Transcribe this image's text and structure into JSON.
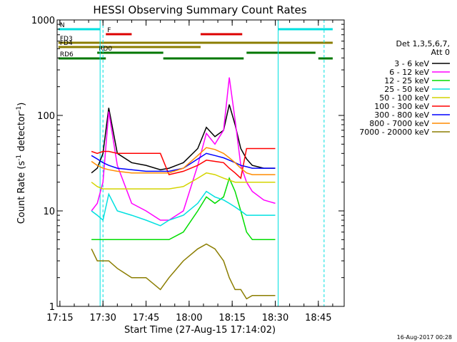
{
  "chart_data": {
    "type": "line",
    "title": "HESSI Observing Summary Count Rates",
    "xlabel": "Start Time (27-Aug-15 17:14:02)",
    "ylabel_main": "Count Rate (s",
    "ylabel_sup1": "-1",
    "ylabel_mid": " detector",
    "ylabel_sup2": "-1",
    "ylabel_end": ")",
    "yscale": "log",
    "xlim": [
      "17:14:02",
      "18:54:00"
    ],
    "ylim": [
      1,
      1000
    ],
    "x_ticks": [
      "17:15",
      "17:30",
      "17:45",
      "18:00",
      "18:15",
      "18:30",
      "18:45"
    ],
    "y_ticks": [
      "1",
      "10",
      "100",
      "1000"
    ],
    "footer_date": "16-Aug-2017 00:28",
    "legend": {
      "header": [
        "Det 1,3,5,6,7,",
        "Att 0"
      ],
      "entries": [
        {
          "label": "3 - 6 keV",
          "color": "#000000"
        },
        {
          "label": "6 - 12 keV",
          "color": "#ff00ff"
        },
        {
          "label": "12 - 25 keV",
          "color": "#00dd00"
        },
        {
          "label": "25 - 50 keV",
          "color": "#00e0e0"
        },
        {
          "label": "50 - 100 keV",
          "color": "#d4d400"
        },
        {
          "label": "100 - 300 keV",
          "color": "#ff0000"
        },
        {
          "label": "300 - 800 keV",
          "color": "#0000ff"
        },
        {
          "label": "800 - 7000 keV",
          "color": "#ff8c00"
        },
        {
          "label": "7000 - 20000 keV",
          "color": "#8b7d00"
        }
      ]
    },
    "flag_bars": [
      {
        "label": "N",
        "color": "#00e0e0",
        "segments": [
          [
            "17:14:30",
            "17:29:00"
          ],
          [
            "18:31:00",
            "18:50:00"
          ]
        ]
      },
      {
        "label": "F",
        "color": "#dd0000",
        "segments": [
          [
            "17:31:00",
            "17:40:00"
          ],
          [
            "18:04:00",
            "18:18:30"
          ]
        ]
      },
      {
        "label": "FD3",
        "color": "#8b7d00",
        "segments": [
          [
            "17:14:30",
            "18:50:00"
          ]
        ]
      },
      {
        "label": "FD4",
        "color": "#8b7d00",
        "segments": [
          [
            "17:14:30",
            "18:04:00"
          ]
        ]
      },
      {
        "label": "RD0",
        "color": "#007700",
        "segments": [
          [
            "17:28:00",
            "17:51:00"
          ],
          [
            "18:20:00",
            "18:44:00"
          ]
        ]
      },
      {
        "label": "RD6",
        "color": "#007700",
        "segments": [
          [
            "17:14:30",
            "17:31:00"
          ],
          [
            "17:51:00",
            "18:19:00"
          ],
          [
            "18:45:00",
            "18:50:00"
          ]
        ]
      }
    ],
    "vlines": [
      {
        "time": "17:29:00",
        "color": "#00e0e0",
        "style": "solid"
      },
      {
        "time": "17:30:00",
        "color": "#00e0e0",
        "style": "dashed"
      },
      {
        "time": "18:31:00",
        "color": "#00e0e0",
        "style": "solid"
      },
      {
        "time": "18:47:00",
        "color": "#00e0e0",
        "style": "dashed"
      }
    ],
    "time_points": [
      "17:26",
      "17:28",
      "17:30",
      "17:32",
      "17:35",
      "17:40",
      "17:45",
      "17:50",
      "17:53",
      "17:58",
      "18:03",
      "18:06",
      "18:09",
      "18:12",
      "18:14",
      "18:16",
      "18:18",
      "18:20",
      "18:22",
      "18:26",
      "18:30"
    ],
    "series": [
      {
        "name": "3 - 6 keV",
        "color": "#000000",
        "values": [
          25,
          28,
          40,
          120,
          40,
          32,
          30,
          27,
          28,
          32,
          45,
          75,
          60,
          70,
          130,
          80,
          45,
          35,
          30,
          28,
          28
        ]
      },
      {
        "name": "6 - 12 keV",
        "color": "#ff00ff",
        "values": [
          10,
          12,
          20,
          110,
          30,
          12,
          10,
          8,
          8,
          10,
          30,
          65,
          50,
          70,
          250,
          90,
          30,
          20,
          16,
          13,
          12
        ]
      },
      {
        "name": "12 - 25 keV",
        "color": "#00dd00",
        "values": [
          5,
          5,
          5,
          5,
          5,
          5,
          5,
          5,
          5,
          6,
          10,
          14,
          12,
          14,
          22,
          16,
          10,
          6,
          5,
          5,
          5
        ]
      },
      {
        "name": "25 - 50 keV",
        "color": "#00e0e0",
        "values": [
          10,
          9,
          8,
          15,
          10,
          9,
          8,
          7,
          8,
          9,
          12,
          16,
          14,
          13,
          12,
          11,
          10,
          9,
          9,
          9,
          9
        ]
      },
      {
        "name": "50 - 100 keV",
        "color": "#d4d400",
        "values": [
          20,
          18,
          17,
          17,
          17,
          17,
          17,
          17,
          17,
          18,
          22,
          25,
          24,
          22,
          21,
          20,
          20,
          20,
          20,
          20,
          20
        ]
      },
      {
        "name": "100 - 300 keV",
        "color": "#ff0000",
        "values": [
          42,
          40,
          42,
          42,
          40,
          40,
          40,
          40,
          24,
          26,
          30,
          34,
          33,
          32,
          28,
          25,
          22,
          45,
          45,
          45,
          45
        ]
      },
      {
        "name": "300 - 800 keV",
        "color": "#0000ff",
        "values": [
          38,
          35,
          32,
          30,
          28,
          27,
          26,
          26,
          26,
          28,
          35,
          40,
          38,
          36,
          34,
          32,
          30,
          29,
          28,
          28,
          28
        ]
      },
      {
        "name": "800 - 7000 keV",
        "color": "#ff8c00",
        "values": [
          33,
          30,
          28,
          27,
          26,
          25,
          25,
          25,
          25,
          28,
          38,
          46,
          44,
          40,
          36,
          32,
          28,
          25,
          24,
          24,
          24
        ]
      },
      {
        "name": "7000 - 20000 keV",
        "color": "#8b7d00",
        "values": [
          4,
          3,
          3,
          3,
          2.5,
          2,
          2,
          1.5,
          2,
          3,
          4,
          4.5,
          4,
          3,
          2,
          1.5,
          1.5,
          1.2,
          1.3,
          1.3,
          1.3
        ]
      }
    ]
  }
}
